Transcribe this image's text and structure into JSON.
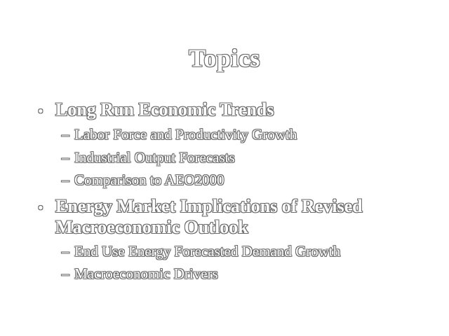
{
  "slide": {
    "title": "Topics",
    "bullets": [
      {
        "marker": "•",
        "text": "Long Run Economic Trends",
        "subitems": [
          {
            "marker": "–",
            "text": "Labor Force and Productivity Growth"
          },
          {
            "marker": "–",
            "text": "Industrial Output Forecasts"
          },
          {
            "marker": "–",
            "text": "Comparison to AEO2000"
          }
        ]
      },
      {
        "marker": "•",
        "text_line1": "Energy Market Implications of Revised",
        "text_line2": "Macroeconomic Outlook",
        "subitems": [
          {
            "marker": "–",
            "text": "End Use Energy Forecasted Demand Growth"
          },
          {
            "marker": "–",
            "text": "Macroeconomic Drivers"
          }
        ]
      }
    ]
  }
}
